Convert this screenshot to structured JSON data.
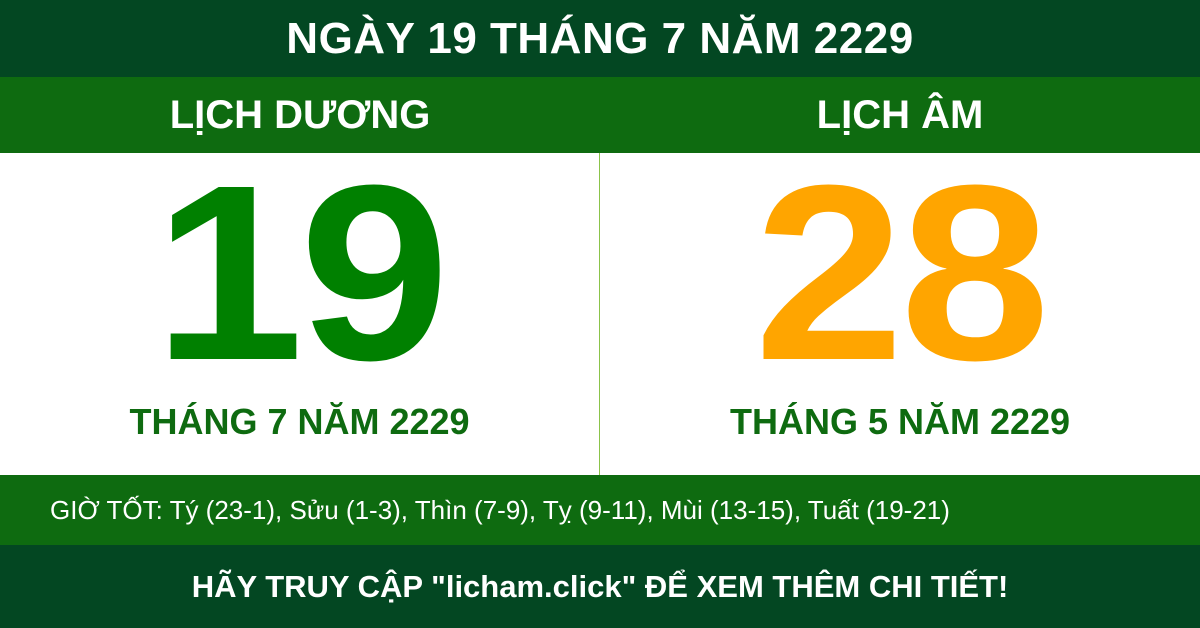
{
  "title": "NGÀY 19 THÁNG 7 NĂM 2229",
  "solar": {
    "label": "LỊCH DƯƠNG",
    "day": "19",
    "month_year": "THÁNG 7 NĂM 2229"
  },
  "lunar": {
    "label": "LỊCH ÂM",
    "day": "28",
    "month_year": "THÁNG 5 NĂM 2229"
  },
  "good_hours": "GIỜ TỐT: Tý (23-1), Sửu (1-3), Thìn (7-9), Tỵ (9-11), Mùi (13-15), Tuất (19-21)",
  "footer": "HÃY TRUY CẬP \"licham.click\" ĐỂ XEM THÊM CHI TIẾT!",
  "colors": {
    "dark_green": "#034722",
    "green": "#0e6b10",
    "solar_day": "#008000",
    "lunar_day": "#ffa500"
  }
}
